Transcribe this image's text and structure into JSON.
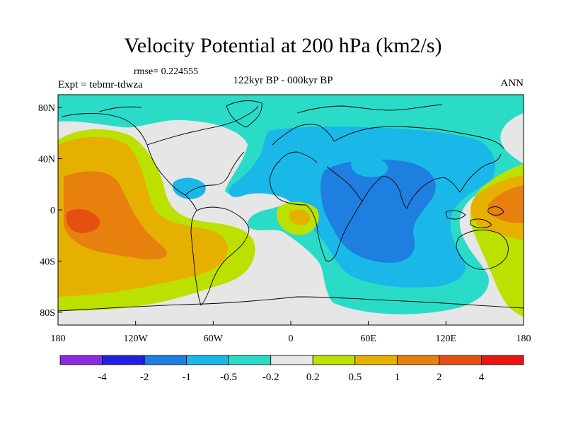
{
  "title": "Velocity Potential at 200 hPa (km2/s)",
  "rmse_text": "rmse= 0.224555",
  "experiment_text": "Expt = tebmr-tdwza",
  "period_text": "122kyr BP - 000kyr BP",
  "season_text": "ANN",
  "map": {
    "projection": "cylindrical equidistant",
    "lon_range": [
      -180,
      180
    ],
    "lat_range": [
      -90,
      90
    ],
    "x_ticks": [
      {
        "lon": -180,
        "label": "180"
      },
      {
        "lon": -120,
        "label": "120W"
      },
      {
        "lon": -60,
        "label": "60W"
      },
      {
        "lon": 0,
        "label": "0"
      },
      {
        "lon": 60,
        "label": "60E"
      },
      {
        "lon": 120,
        "label": "120E"
      },
      {
        "lon": 180,
        "label": "180"
      }
    ],
    "y_ticks": [
      {
        "lat": 80,
        "label": "80N"
      },
      {
        "lat": 40,
        "label": "40N"
      },
      {
        "lat": 0,
        "label": "0"
      },
      {
        "lat": -40,
        "label": "40S"
      },
      {
        "lat": -80,
        "label": "80S"
      }
    ],
    "background_color": "#e6e6e6"
  },
  "colorbar": {
    "colors": [
      "#8a2be2",
      "#2020e0",
      "#1e7fe0",
      "#1ab8e8",
      "#2adcc8",
      "#e6e6e6",
      "#bce000",
      "#e6b000",
      "#e88010",
      "#e45010",
      "#e81410"
    ],
    "labels": [
      "-4",
      "-2",
      "-1",
      "-0.5",
      "-0.2",
      "0.2",
      "0.5",
      "1",
      "2",
      "4"
    ]
  }
}
